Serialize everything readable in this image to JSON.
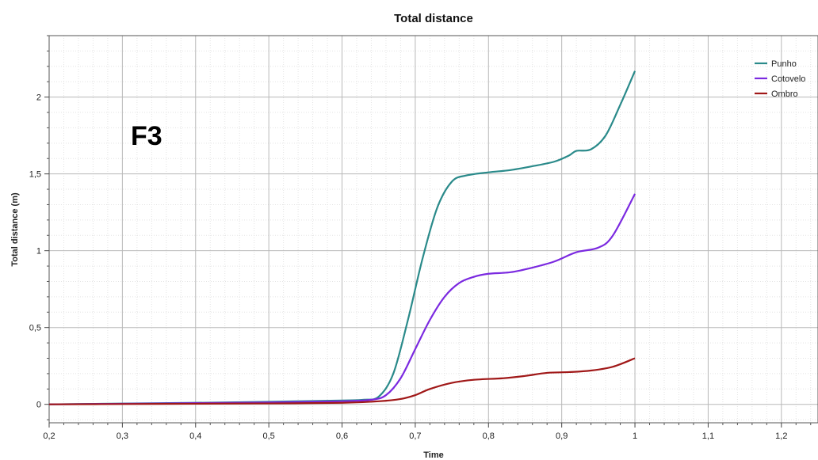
{
  "chart_data": {
    "type": "line",
    "title": "Total distance",
    "xlabel": "Time",
    "ylabel": "Total distance (m)",
    "xlim": [
      0.2,
      1.25
    ],
    "ylim": [
      -0.12,
      2.4
    ],
    "x_ticks": [
      0.2,
      0.3,
      0.4,
      0.5,
      0.6,
      0.7,
      0.8,
      0.9,
      1,
      1.1,
      1.2
    ],
    "x_tick_labels": [
      "0,2",
      "0,3",
      "0,4",
      "0,5",
      "0,6",
      "0,7",
      "0,8",
      "0,9",
      "1",
      "1,1",
      "1,2"
    ],
    "y_ticks": [
      0,
      0.5,
      1,
      1.5,
      2
    ],
    "y_tick_labels": [
      "0",
      "0,5",
      "1",
      "1,5",
      "2"
    ],
    "grid": true,
    "legend_position": "top-right",
    "annotation": "F3",
    "series": [
      {
        "name": "Punho",
        "color": "#2a8a8a",
        "points": [
          [
            0.2,
            0.0
          ],
          [
            0.3,
            0.005
          ],
          [
            0.4,
            0.01
          ],
          [
            0.5,
            0.017
          ],
          [
            0.6,
            0.025
          ],
          [
            0.63,
            0.03
          ],
          [
            0.65,
            0.05
          ],
          [
            0.67,
            0.2
          ],
          [
            0.69,
            0.55
          ],
          [
            0.71,
            0.95
          ],
          [
            0.73,
            1.28
          ],
          [
            0.75,
            1.45
          ],
          [
            0.77,
            1.49
          ],
          [
            0.8,
            1.51
          ],
          [
            0.83,
            1.525
          ],
          [
            0.86,
            1.55
          ],
          [
            0.89,
            1.58
          ],
          [
            0.91,
            1.62
          ],
          [
            0.92,
            1.65
          ],
          [
            0.94,
            1.66
          ],
          [
            0.96,
            1.75
          ],
          [
            0.98,
            1.95
          ],
          [
            1.0,
            2.17
          ]
        ]
      },
      {
        "name": "Cotovelo",
        "color": "#7b2ae0",
        "points": [
          [
            0.2,
            0.0
          ],
          [
            0.3,
            0.004
          ],
          [
            0.4,
            0.008
          ],
          [
            0.5,
            0.013
          ],
          [
            0.6,
            0.02
          ],
          [
            0.64,
            0.03
          ],
          [
            0.66,
            0.06
          ],
          [
            0.68,
            0.17
          ],
          [
            0.7,
            0.36
          ],
          [
            0.72,
            0.55
          ],
          [
            0.74,
            0.7
          ],
          [
            0.76,
            0.79
          ],
          [
            0.78,
            0.83
          ],
          [
            0.8,
            0.85
          ],
          [
            0.83,
            0.86
          ],
          [
            0.86,
            0.89
          ],
          [
            0.89,
            0.93
          ],
          [
            0.92,
            0.99
          ],
          [
            0.95,
            1.02
          ],
          [
            0.97,
            1.1
          ],
          [
            1.0,
            1.37
          ]
        ]
      },
      {
        "name": "Ombro",
        "color": "#a01818",
        "points": [
          [
            0.2,
            0.0
          ],
          [
            0.3,
            0.002
          ],
          [
            0.4,
            0.004
          ],
          [
            0.5,
            0.006
          ],
          [
            0.6,
            0.01
          ],
          [
            0.65,
            0.02
          ],
          [
            0.68,
            0.035
          ],
          [
            0.7,
            0.06
          ],
          [
            0.72,
            0.1
          ],
          [
            0.75,
            0.14
          ],
          [
            0.78,
            0.16
          ],
          [
            0.82,
            0.17
          ],
          [
            0.85,
            0.185
          ],
          [
            0.88,
            0.205
          ],
          [
            0.91,
            0.21
          ],
          [
            0.94,
            0.22
          ],
          [
            0.97,
            0.245
          ],
          [
            1.0,
            0.3
          ]
        ]
      }
    ]
  }
}
